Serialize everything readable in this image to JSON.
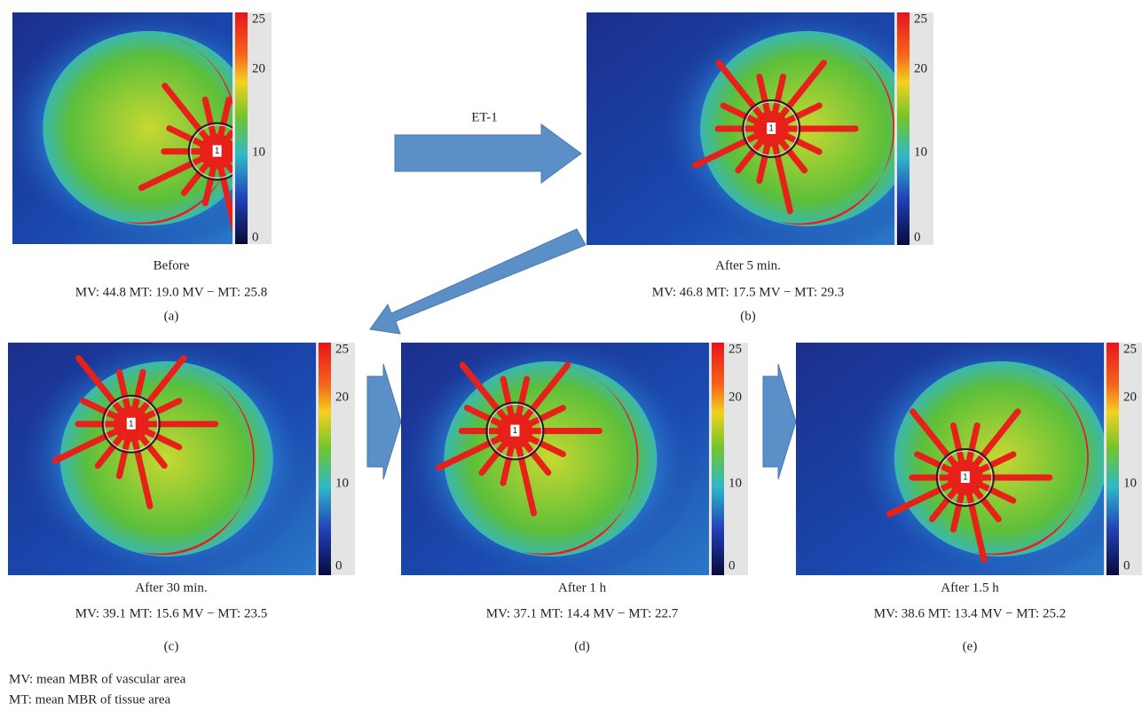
{
  "figure": {
    "arrow_label": "ET-1",
    "roi_label": "1",
    "panels": [
      {
        "caption": "Before",
        "stats": "MV: 44.8 MT: 19.0 MV − MT: 25.8",
        "label": "(a)",
        "colorbar_ticks": [
          "25",
          "20",
          "10",
          "0"
        ]
      },
      {
        "caption": "After 5 min.",
        "stats": "MV: 46.8 MT: 17.5 MV − MT: 29.3",
        "label": "(b)",
        "colorbar_ticks": [
          "25",
          "20",
          "10",
          "0"
        ]
      },
      {
        "caption": "After 30 min.",
        "stats": "MV: 39.1 MT: 15.6 MV − MT: 23.5",
        "label": "(c)",
        "colorbar_ticks": [
          "25",
          "20",
          "10",
          "0"
        ]
      },
      {
        "caption": "After 1 h",
        "stats": "MV: 37.1 MT: 14.4 MV − MT: 22.7",
        "label": "(d)",
        "colorbar_ticks": [
          "25",
          "20",
          "10",
          "0"
        ]
      },
      {
        "caption": "After 1.5 h",
        "stats": "MV: 38.6 MT: 13.4 MV − MT: 25.2",
        "label": "(e)",
        "colorbar_ticks": [
          "25",
          "20",
          "10",
          "0"
        ]
      }
    ],
    "footnotes": [
      "MV: mean MBR of vascular area",
      "MT: mean MBR of tissue area"
    ]
  }
}
